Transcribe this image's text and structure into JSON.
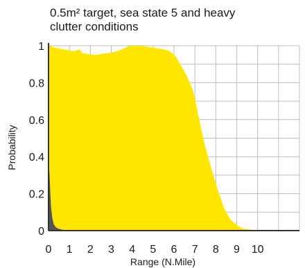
{
  "chart_data": {
    "type": "area",
    "title_lines": [
      "0.5m² target, sea state 5 and heavy",
      "clutter conditions"
    ],
    "xlabel": "Range (N.Mile)",
    "ylabel": "Probability",
    "xlim": [
      0,
      12
    ],
    "ylim": [
      0,
      1
    ],
    "x_ticks": [
      0,
      1,
      2,
      3,
      4,
      5,
      6,
      7,
      8,
      9,
      10
    ],
    "x_tick_labels": [
      "0",
      "1",
      "2",
      "3",
      "4",
      "5",
      "6",
      "7",
      "8",
      "9",
      "10"
    ],
    "y_ticks": [
      0,
      0.2,
      0.4,
      0.6,
      0.8,
      1
    ],
    "y_tick_labels": [
      "0",
      "0.2",
      "0.4",
      "0.6",
      "0.8",
      "1"
    ],
    "grid": true,
    "colors": {
      "detection": "#ffe600",
      "false_alarm": "#555555",
      "grid": "#bdbdbd",
      "axis": "#333333"
    },
    "series": [
      {
        "x": [
          0,
          0.05,
          0.3,
          0.7,
          1.2,
          1.5,
          1.6,
          2.2,
          2.8,
          3.3,
          3.5,
          3.9,
          4.4,
          5.0,
          5.5,
          5.8,
          6.1,
          6.3,
          6.6,
          6.9,
          7.1,
          7.3,
          7.5,
          7.8,
          8.1,
          8.4,
          8.7,
          9.0,
          9.3,
          9.7,
          10.0,
          11.0,
          12.0
        ],
        "values": [
          0.99,
          1.0,
          0.99,
          0.98,
          0.97,
          0.98,
          0.96,
          0.95,
          0.96,
          0.97,
          0.98,
          1.0,
          1.0,
          0.99,
          0.98,
          0.97,
          0.94,
          0.9,
          0.84,
          0.76,
          0.66,
          0.55,
          0.45,
          0.33,
          0.22,
          0.12,
          0.06,
          0.03,
          0.01,
          0.005,
          0.003,
          0.001,
          0.0
        ]
      },
      {
        "x": [
          0,
          0.02,
          0.05,
          0.08,
          0.12,
          0.18,
          0.25,
          0.35,
          0.5,
          0.7,
          1.0,
          2.0,
          5.0,
          8.0,
          12.0
        ],
        "values": [
          0.34,
          0.35,
          0.3,
          0.22,
          0.13,
          0.07,
          0.035,
          0.018,
          0.009,
          0.004,
          0.002,
          0.001,
          0.0005,
          0.0003,
          0.0
        ]
      }
    ]
  }
}
